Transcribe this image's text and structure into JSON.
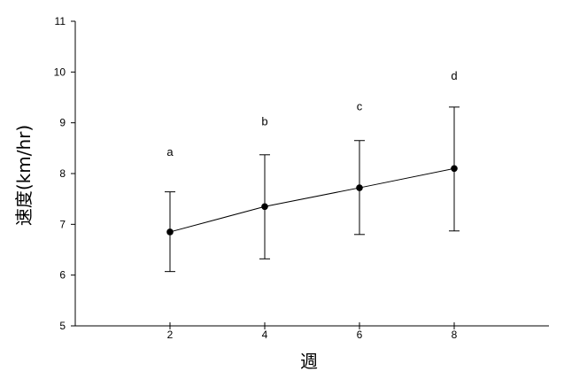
{
  "chart_data": {
    "type": "line",
    "title": "",
    "xlabel": "週",
    "ylabel": "速度(km/hr)",
    "xlim": [
      0,
      10
    ],
    "ylim": [
      5,
      11
    ],
    "x_ticks": [
      2,
      4,
      6,
      8
    ],
    "y_ticks": [
      5,
      6,
      7,
      8,
      9,
      10,
      11
    ],
    "grid": false,
    "legend": "none",
    "series": [
      {
        "x": [
          2,
          4,
          6,
          8
        ],
        "values": [
          6.85,
          7.35,
          7.72,
          8.1
        ],
        "error_low": [
          6.07,
          6.32,
          6.8,
          6.87
        ],
        "error_high": [
          7.64,
          8.37,
          8.65,
          9.31
        ]
      }
    ],
    "annotations": [
      {
        "x": 2,
        "y": 8.35,
        "text": "a"
      },
      {
        "x": 4,
        "y": 8.95,
        "text": "b"
      },
      {
        "x": 6,
        "y": 9.25,
        "text": "c"
      },
      {
        "x": 8,
        "y": 9.85,
        "text": "d"
      }
    ]
  },
  "colors": {
    "line": "#000000",
    "marker": "#000000",
    "background": "#ffffff"
  }
}
